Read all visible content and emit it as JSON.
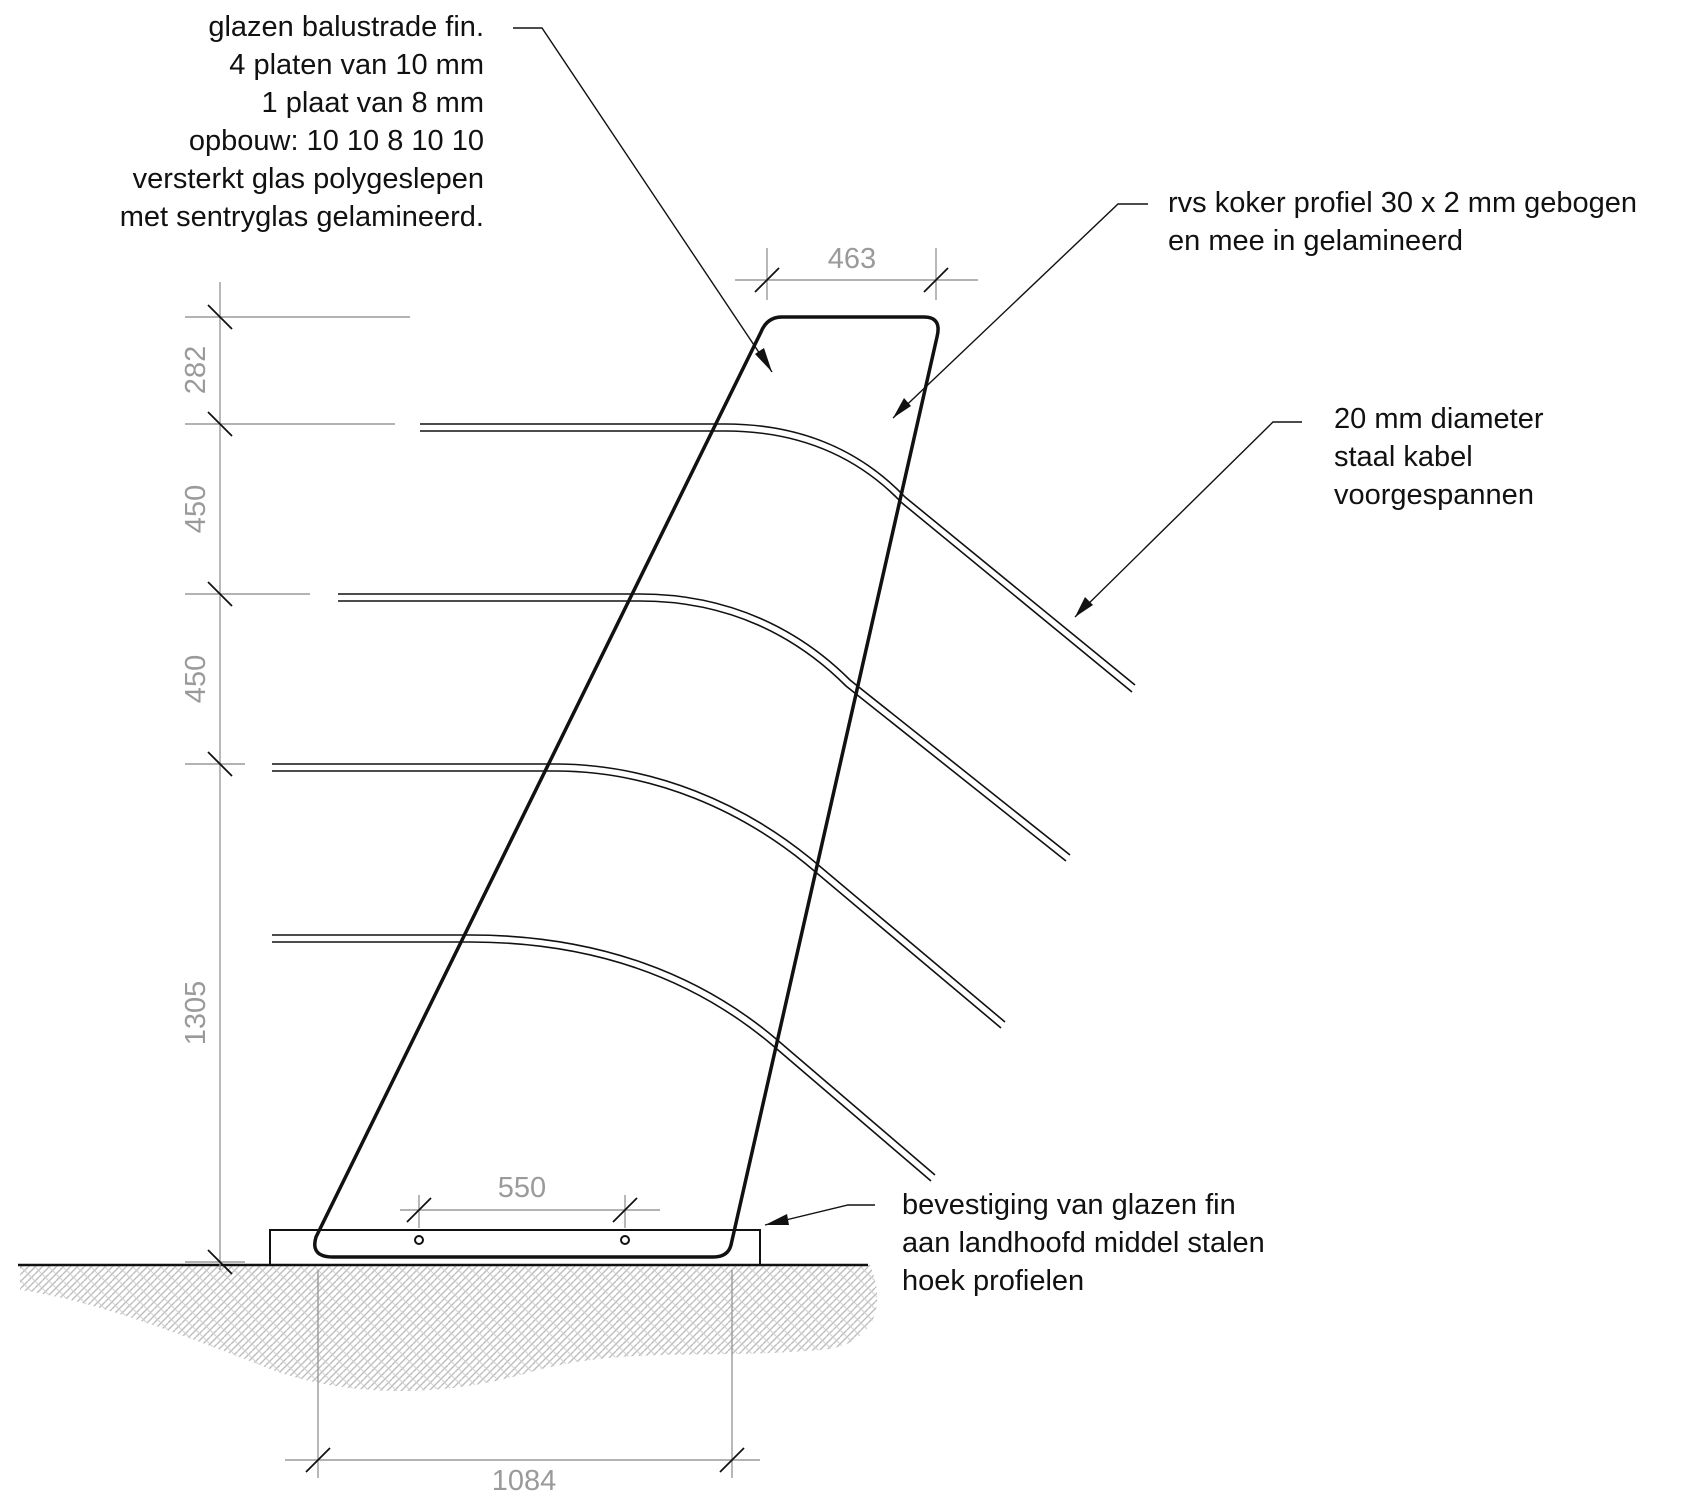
{
  "annotations": {
    "glass_fin": [
      "glazen balustrade fin.",
      "4 platen van 10 mm",
      "1 plaat van 8 mm",
      "opbouw: 10 10 8 10 10",
      "versterkt glas polygeslepen",
      "met sentryglas gelamineerd."
    ],
    "steel_tube": [
      "rvs koker profiel 30 x 2 mm gebogen",
      "en mee in gelamineerd"
    ],
    "cable": [
      "20 mm diameter",
      "staal kabel",
      "voorgespannen"
    ],
    "fixing": [
      "bevestiging van glazen fin",
      "aan landhoofd middel stalen",
      "hoek profielen"
    ]
  },
  "dimensions": {
    "top_width": "463",
    "top_segment": "282",
    "cable_spacing_1": "450",
    "cable_spacing_2": "450",
    "lower_height": "1305",
    "bolt_spacing": "550",
    "base_width": "1084"
  },
  "colors": {
    "line": "#111111",
    "dimension": "#9a9a9a",
    "hatch": "#bdbdbd"
  }
}
